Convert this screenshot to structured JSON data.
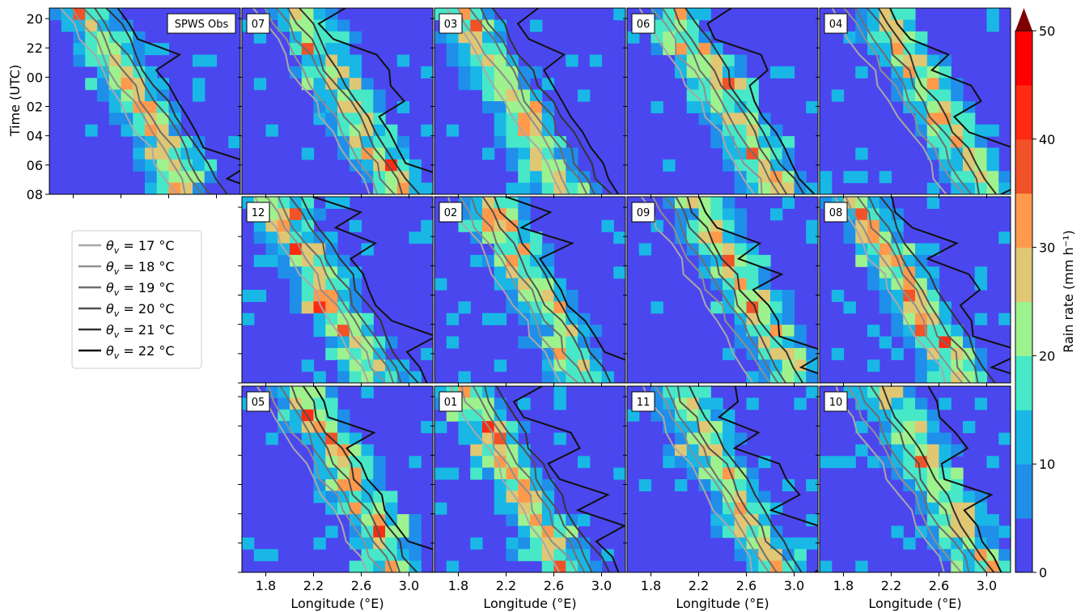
{
  "chart_data": {
    "type": "heatmap",
    "y_axis": {
      "label": "Time (UTC)",
      "tick_labels": [
        "20",
        "22",
        "00",
        "02",
        "04",
        "06",
        "08"
      ]
    },
    "x_axis": {
      "label": "Longitude (°E)",
      "range": [
        1.6,
        3.2
      ],
      "tick_values": [
        1.8,
        2.2,
        2.6,
        3.0
      ],
      "tick_labels": [
        "1.8",
        "2.2",
        "2.6",
        "3.0"
      ]
    },
    "colorbar": {
      "label": "Rain rate (mm h⁻¹)",
      "range": [
        0,
        50
      ],
      "tick_values": [
        0,
        10,
        20,
        30,
        40,
        50
      ],
      "tick_labels": [
        "0",
        "10",
        "20",
        "30",
        "40",
        "50"
      ],
      "extend": "max",
      "colors": [
        "#4b47ee",
        "#1f8fea",
        "#19b7e6",
        "#47e8c8",
        "#9ef28e",
        "#e0c774",
        "#ff9a4c",
        "#f25228",
        "#ff2a12",
        "#ff0000"
      ]
    },
    "legend": {
      "placement": "left-middle",
      "entries": [
        {
          "symbol": "θv",
          "label": " = 17 °C",
          "color": "#a8a8a8"
        },
        {
          "symbol": "θv",
          "label": " = 18 °C",
          "color": "#8f8f8f"
        },
        {
          "symbol": "θv",
          "label": " = 19 °C",
          "color": "#6e6e6e"
        },
        {
          "symbol": "θv",
          "label": " = 20 °C",
          "color": "#525252"
        },
        {
          "symbol": "θv",
          "label": " = 21 °C",
          "color": "#333333"
        },
        {
          "symbol": "θv",
          "label": " = 22 °C",
          "color": "#111111"
        }
      ]
    },
    "panels": [
      {
        "label": "SPWS Obs",
        "row": 0,
        "col": 0
      },
      {
        "label": "07",
        "row": 0,
        "col": 1
      },
      {
        "label": "03",
        "row": 0,
        "col": 2
      },
      {
        "label": "06",
        "row": 0,
        "col": 3
      },
      {
        "label": "04",
        "row": 0,
        "col": 4
      },
      {
        "label": "12",
        "row": 1,
        "col": 1
      },
      {
        "label": "02",
        "row": 1,
        "col": 2
      },
      {
        "label": "09",
        "row": 1,
        "col": 3
      },
      {
        "label": "08",
        "row": 1,
        "col": 4
      },
      {
        "label": "05",
        "row": 2,
        "col": 1
      },
      {
        "label": "01",
        "row": 2,
        "col": 2
      },
      {
        "label": "11",
        "row": 2,
        "col": 3
      },
      {
        "label": "10",
        "row": 2,
        "col": 4
      }
    ]
  }
}
